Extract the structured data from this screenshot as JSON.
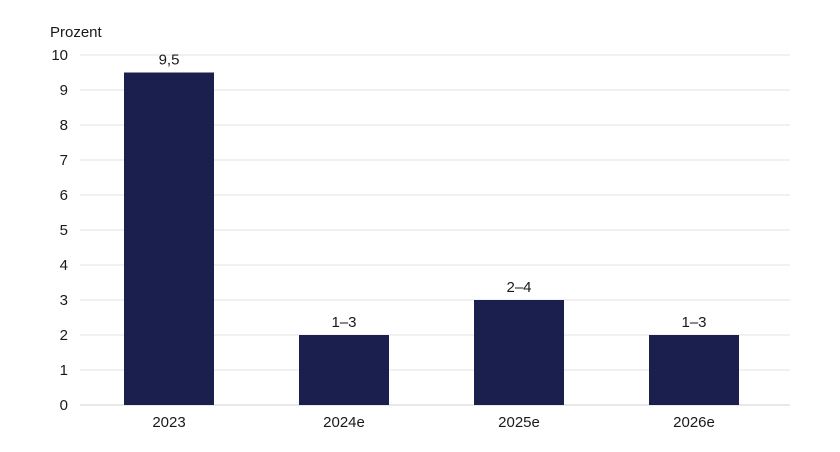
{
  "chart_data": {
    "type": "bar",
    "unit_label": "Prozent",
    "categories": [
      "2023",
      "2024e",
      "2025e",
      "2026e"
    ],
    "values": [
      9.5,
      2,
      3,
      2
    ],
    "value_labels": [
      "9,5",
      "1–3",
      "2–4",
      "1–3"
    ],
    "ylim": [
      0,
      10
    ],
    "yticks": [
      0,
      1,
      2,
      3,
      4,
      5,
      6,
      7,
      8,
      9,
      10
    ],
    "grid": true,
    "bar_color": "#1b1f4e"
  }
}
